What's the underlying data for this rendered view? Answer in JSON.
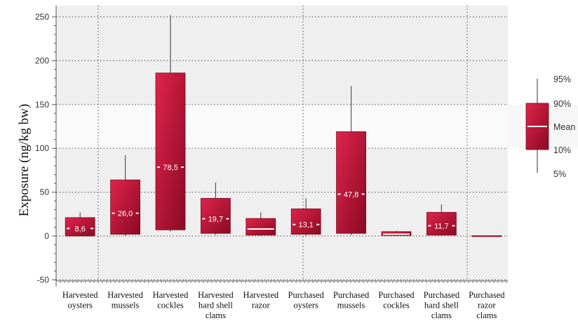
{
  "chart_data": {
    "type": "box",
    "ylabel": "Exposure (ng/kg bw)",
    "ylim": [
      -50,
      260
    ],
    "yticks": [
      -50,
      0,
      50,
      100,
      150,
      200,
      250
    ],
    "grid": "dotted",
    "legend_position": "right",
    "colors": {
      "box_light": "#d81c44",
      "box_dark": "#8c0a24",
      "whisker": "#555555",
      "median_line": "#ffffff"
    },
    "categories": [
      [
        "Harvested",
        "oysters"
      ],
      [
        "Harvested",
        "mussels"
      ],
      [
        "Harvested",
        "cockles"
      ],
      [
        "Harvested",
        "hard shell",
        "clams"
      ],
      [
        "Harvested",
        "razor"
      ],
      [
        "Purchased",
        "oysters"
      ],
      [
        "Purchased",
        "mussels"
      ],
      [
        "Purchased",
        "cockles"
      ],
      [
        "Purchased",
        "hard shell",
        "clams"
      ],
      [
        "Purchased",
        "razor",
        "clams"
      ]
    ],
    "boxes": [
      {
        "p5": 0,
        "p10": 0,
        "mean": 8.6,
        "p90": 21,
        "p95": 27,
        "label": "8,6"
      },
      {
        "p5": 0,
        "p10": 2,
        "mean": 26.0,
        "p90": 64,
        "p95": 92,
        "label": "26,0"
      },
      {
        "p5": 5,
        "p10": 7,
        "mean": 78.5,
        "p90": 186,
        "p95": 252,
        "label": "78,5"
      },
      {
        "p5": 1,
        "p10": 3,
        "mean": 19.7,
        "p90": 43,
        "p95": 61,
        "label": "19,7"
      },
      {
        "p5": 0,
        "p10": 1,
        "mean": 8,
        "p90": 20,
        "p95": 27,
        "label": ""
      },
      {
        "p5": 0,
        "p10": 2,
        "mean": 13.1,
        "p90": 31,
        "p95": 43,
        "label": "13,1"
      },
      {
        "p5": 1,
        "p10": 3,
        "mean": 47.8,
        "p90": 119,
        "p95": 171,
        "label": "47,8"
      },
      {
        "p5": 0,
        "p10": 0.5,
        "mean": 2,
        "p90": 5,
        "p95": 6,
        "label": ""
      },
      {
        "p5": 0,
        "p10": 1,
        "mean": 11.7,
        "p90": 27,
        "p95": 36,
        "label": "11,7"
      },
      {
        "p5": 0,
        "p10": 0,
        "mean": 0,
        "p90": 0.3,
        "p95": 0.3,
        "label": ""
      }
    ],
    "legend": {
      "p95": "95%",
      "p90": "90%",
      "mean": "Mean",
      "p10": "10%",
      "p5": "5%"
    }
  }
}
